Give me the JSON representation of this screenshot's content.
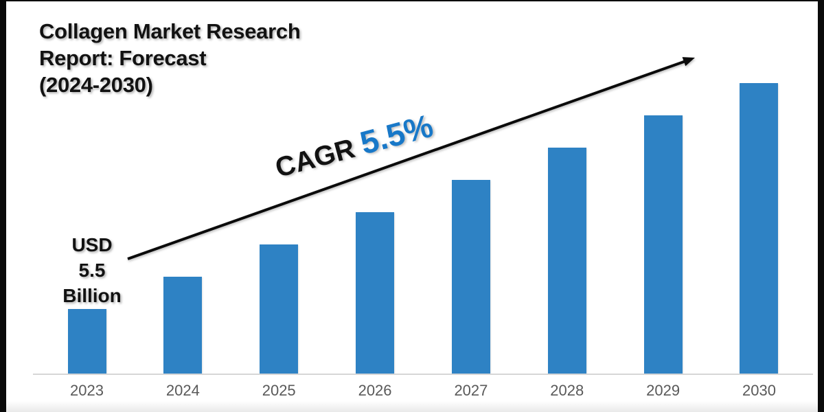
{
  "title": {
    "lines": [
      "Collagen Market Research",
      "Report: Forecast",
      "(2024-2030)"
    ],
    "color": "#121212"
  },
  "annotations": {
    "usd_label": {
      "lines": [
        "USD",
        "5.5",
        "Billion"
      ],
      "color": "#121212"
    },
    "cagr": {
      "prefix": "CAGR ",
      "value": "5.5%",
      "prefix_color": "#121212",
      "value_color": "#1878C8"
    }
  },
  "chart_data": {
    "type": "bar",
    "title": "Collagen Market Research Report: Forecast (2024-2030)",
    "categories": [
      "2023",
      "2024",
      "2025",
      "2026",
      "2027",
      "2028",
      "2029",
      "2030"
    ],
    "values": [
      2,
      3,
      4,
      5,
      6,
      7,
      8,
      9
    ],
    "unit": "relative height (2023 bar labeled USD 5.5 Billion)",
    "xlabel": "",
    "ylabel": "",
    "ylim": [
      0,
      9.7
    ],
    "grid": false,
    "legend": false,
    "bar_color": "#2E82C4",
    "axis_line_color": "#D6D6D6",
    "tick_label_color": "#595959",
    "trend_arrow_color": "#0b0b0b",
    "annotations": [
      "USD 5.5 Billion",
      "CAGR 5.5%"
    ]
  }
}
